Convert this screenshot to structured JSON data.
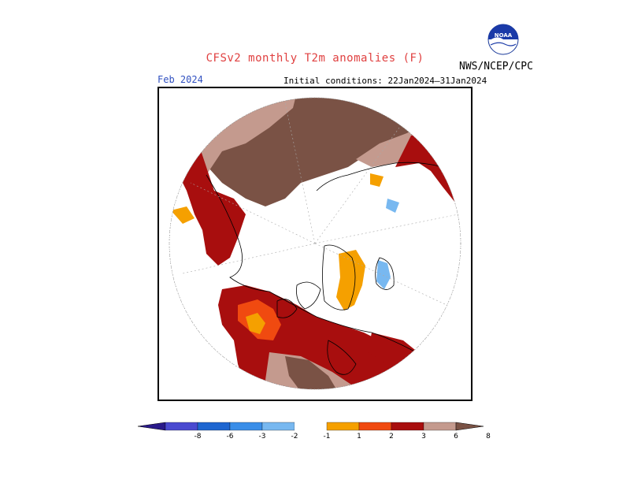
{
  "header": {
    "title": "CFSv2 monthly T2m anomalies (F)",
    "organization": "NWS/NCEP/CPC",
    "logo_text": "NOAA"
  },
  "map": {
    "valid_month": "Feb 2024",
    "initial_conditions": "Initial conditions: 22Jan2024–31Jan2024",
    "projection": "polar-stereographic-north"
  },
  "legend": {
    "tick_labels": [
      "-8",
      "-6",
      "-3",
      "-2",
      "-1",
      "1",
      "2",
      "3",
      "6",
      "8"
    ],
    "bins": [
      {
        "label": "< -8",
        "color": "#2a1a8a"
      },
      {
        "label": "-8 to -6",
        "color": "#4a4ad0"
      },
      {
        "label": "-6 to -3",
        "color": "#1e66d0"
      },
      {
        "label": "-3 to -2",
        "color": "#3a8ee8"
      },
      {
        "label": "-2 to -1",
        "color": "#78b8f0"
      },
      {
        "label": "-1 to 1",
        "color": "#ffffff"
      },
      {
        "label": "1 to 2",
        "color": "#f5a000"
      },
      {
        "label": "2 to 3",
        "color": "#f04a10"
      },
      {
        "label": "3 to 6",
        "color": "#a80e0e"
      },
      {
        "label": "6 to 8",
        "color": "#c49a8e"
      },
      {
        "label": "> 8",
        "color": "#7a5245"
      }
    ]
  }
}
